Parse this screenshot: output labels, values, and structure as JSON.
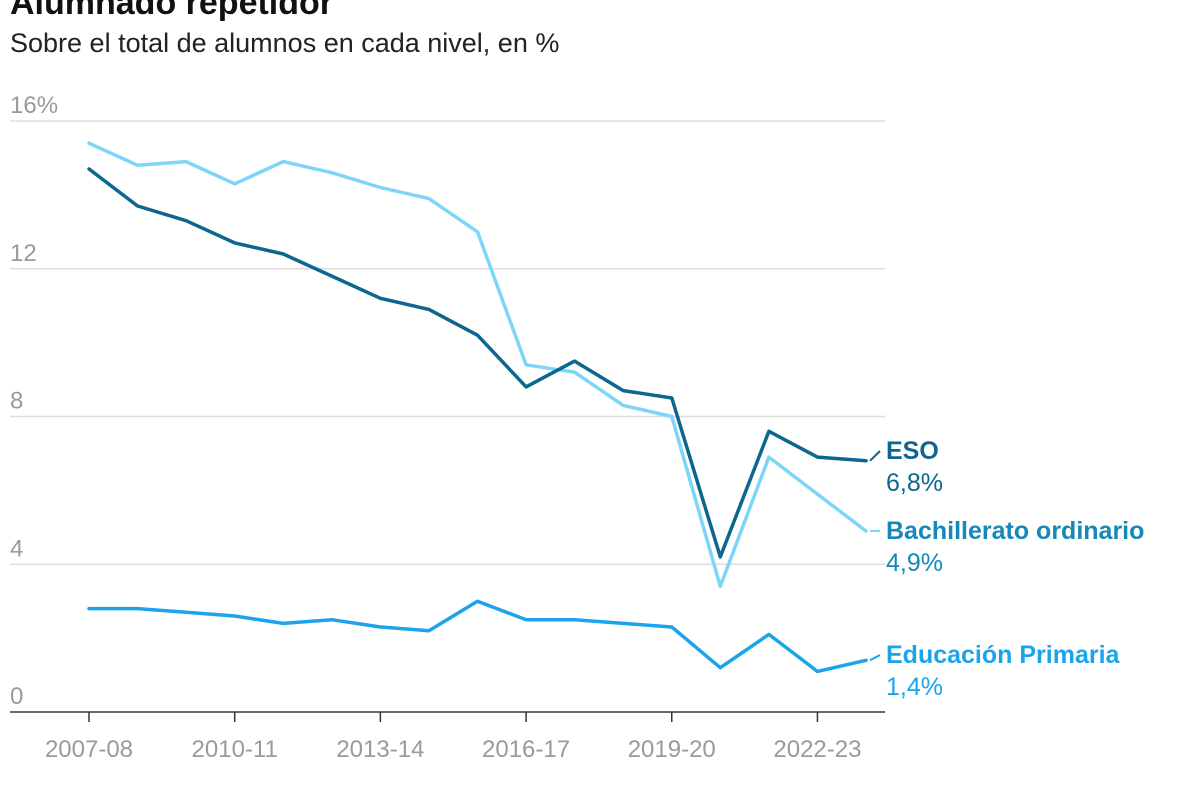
{
  "title": "Alumnado repetidor",
  "subtitle": "Sobre el total de alumnos en cada nivel, en %",
  "chart_data": {
    "type": "line",
    "ylim": [
      0,
      16
    ],
    "y_ticks": [
      "16%",
      "12",
      "8",
      "4",
      "0"
    ],
    "y_tick_values": [
      16,
      12,
      8,
      4,
      0
    ],
    "grid": true,
    "x": [
      "2007-08",
      "2008-09",
      "2009-10",
      "2010-11",
      "2011-12",
      "2012-13",
      "2013-14",
      "2014-15",
      "2015-16",
      "2016-17",
      "2017-18",
      "2018-19",
      "2019-20",
      "2020-21",
      "2021-22",
      "2022-23",
      "2023-24"
    ],
    "x_tick_labels": [
      "2007-08",
      "2010-11",
      "2013-14",
      "2016-17",
      "2019-20",
      "2022-23"
    ],
    "series": [
      {
        "name": "ESO",
        "value_label": "6,8%",
        "color": "#0d6690",
        "label_color": "#0d6690",
        "values": [
          14.7,
          13.7,
          13.3,
          12.7,
          12.4,
          11.8,
          11.2,
          10.9,
          10.2,
          8.8,
          9.5,
          8.7,
          8.5,
          4.2,
          7.6,
          6.9,
          6.8
        ]
      },
      {
        "name": "Bachillerato ordinario",
        "value_label": "4,9%",
        "color": "#7dd6f7",
        "label_color": "#1488b8",
        "values": [
          15.4,
          14.8,
          14.9,
          14.3,
          14.9,
          14.6,
          14.2,
          13.9,
          13.0,
          9.4,
          9.2,
          8.3,
          8.0,
          3.4,
          6.9,
          5.9,
          4.9
        ]
      },
      {
        "name": "Educación Primaria",
        "value_label": "1,4%",
        "color": "#1ba3ec",
        "label_color": "#1ba3ec",
        "values": [
          2.8,
          2.8,
          2.7,
          2.6,
          2.4,
          2.5,
          2.3,
          2.2,
          3.0,
          2.5,
          2.5,
          2.4,
          2.3,
          1.2,
          2.1,
          1.1,
          1.4
        ]
      }
    ]
  }
}
